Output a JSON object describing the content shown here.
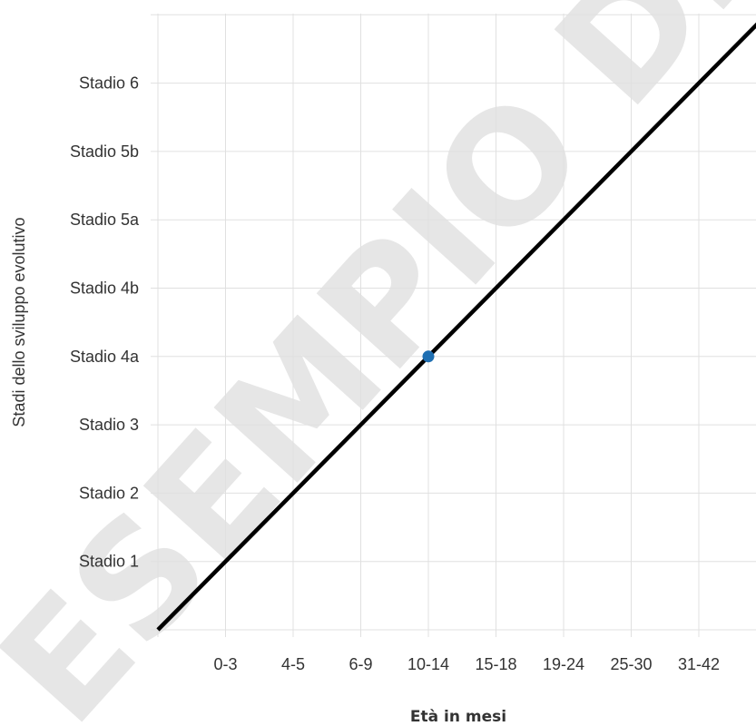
{
  "watermark": "ESEMPIO DI",
  "chart_data": {
    "type": "line",
    "xlabel": "Età in mesi",
    "ylabel": "Stadi dello sviluppo evolutivo",
    "categories": [
      "",
      "0-3",
      "4-5",
      "6-9",
      "10-14",
      "15-18",
      "19-24",
      "25-30",
      "31-42",
      ""
    ],
    "y_categories": [
      "",
      "Stadio 1",
      "Stadio 2",
      "Stadio 3",
      "Stadio 4a",
      "Stadio 4b",
      "Stadio 5a",
      "Stadio 5b",
      "Stadio 6",
      ""
    ],
    "series": [
      {
        "x": [
          0,
          9
        ],
        "y": [
          0,
          9
        ],
        "color": "#000000"
      }
    ],
    "points": [
      {
        "x": 4,
        "y": 4,
        "color": "#1f6fb2"
      }
    ],
    "grid": true,
    "colors": {
      "grid": "#e0e0e0",
      "line": "#000000",
      "point": "#1f6fb2",
      "watermark": "#e6e6e6"
    }
  }
}
